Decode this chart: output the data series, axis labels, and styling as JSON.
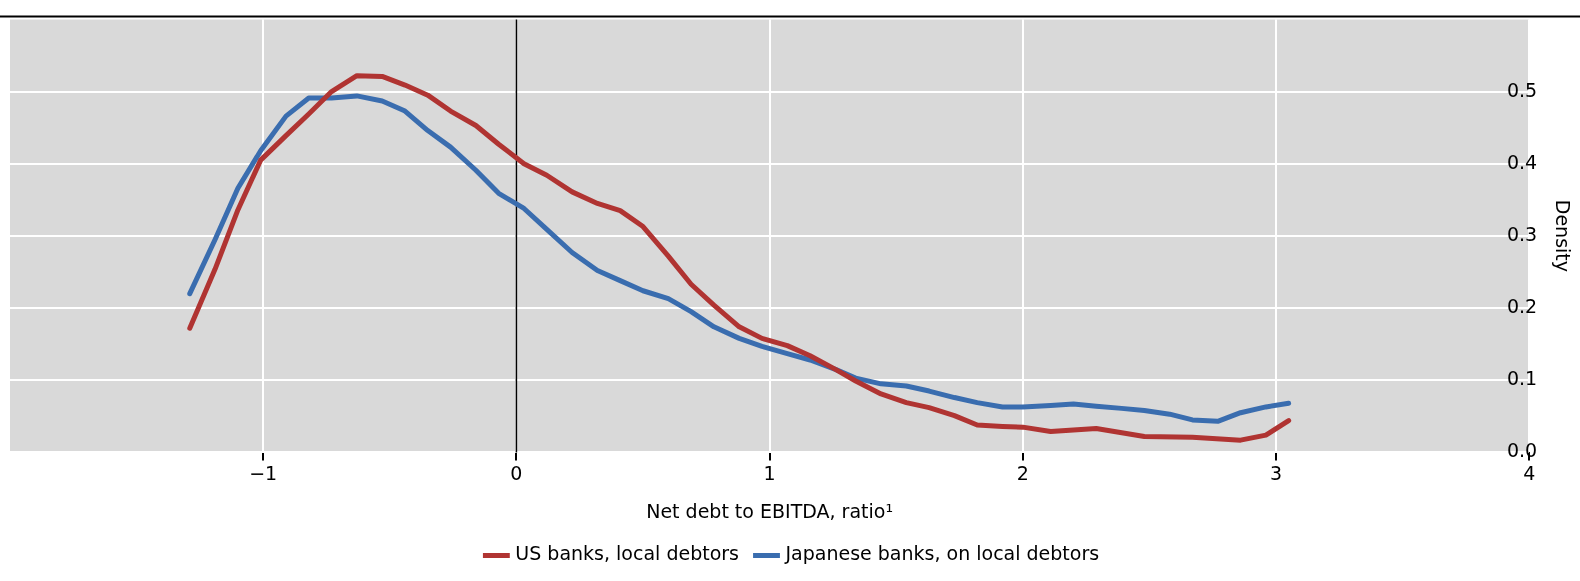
{
  "chart_data": {
    "type": "line",
    "xlabel": "Net debt to EBITDA, ratio¹",
    "ylabel": "Density",
    "xlim": [
      -2,
      4
    ],
    "xticks": [
      {
        "value": -1,
        "label": "−1"
      },
      0,
      1,
      2,
      3,
      4
    ],
    "ylim": [
      0,
      0.6
    ],
    "yticks": [
      {
        "value": 0,
        "label": "0.0"
      },
      0.1,
      0.2,
      0.3,
      0.4,
      0.5
    ],
    "grid": true,
    "legend": "bottom",
    "marker": "none",
    "line_style": "solid",
    "ref_lines": [
      {
        "axis": "x",
        "value": 0,
        "color": "#000000"
      }
    ],
    "series": [
      {
        "name": "US banks, local debtors",
        "color": "#b03432",
        "x": [
          -1.29,
          -1.19,
          -1.1,
          -1.01,
          -0.91,
          -0.82,
          -0.73,
          -0.63,
          -0.53,
          -0.44,
          -0.35,
          -0.26,
          -0.16,
          -0.07,
          0.03,
          0.12,
          0.22,
          0.32,
          0.41,
          0.5,
          0.6,
          0.69,
          0.78,
          0.88,
          0.97,
          1.07,
          1.16,
          1.26,
          1.34,
          1.44,
          1.54,
          1.63,
          1.73,
          1.82,
          1.92,
          2.0,
          2.11,
          2.29,
          2.48,
          2.67,
          2.86,
          2.96,
          3.05
        ],
        "values": [
          0.172,
          0.254,
          0.336,
          0.405,
          0.439,
          0.469,
          0.5,
          0.522,
          0.521,
          0.509,
          0.495,
          0.473,
          0.453,
          0.427,
          0.4,
          0.384,
          0.361,
          0.345,
          0.335,
          0.313,
          0.272,
          0.233,
          0.204,
          0.174,
          0.158,
          0.148,
          0.134,
          0.115,
          0.099,
          0.081,
          0.069,
          0.062,
          0.051,
          0.038,
          0.036,
          0.035,
          0.029,
          0.033,
          0.022,
          0.021,
          0.017,
          0.024,
          0.044
        ]
      },
      {
        "name": "Japanese banks, on local debtors",
        "color": "#3a6daf",
        "x": [
          -1.29,
          -1.19,
          -1.1,
          -1.01,
          -0.91,
          -0.82,
          -0.73,
          -0.63,
          -0.53,
          -0.44,
          -0.35,
          -0.26,
          -0.16,
          -0.07,
          0.03,
          0.12,
          0.22,
          0.32,
          0.41,
          0.5,
          0.6,
          0.69,
          0.78,
          0.88,
          0.97,
          1.07,
          1.16,
          1.26,
          1.34,
          1.44,
          1.54,
          1.63,
          1.73,
          1.82,
          1.92,
          2.0,
          2.11,
          2.2,
          2.29,
          2.39,
          2.48,
          2.58,
          2.67,
          2.77,
          2.86,
          2.96,
          3.05
        ],
        "values": [
          0.22,
          0.295,
          0.366,
          0.418,
          0.466,
          0.491,
          0.491,
          0.494,
          0.487,
          0.473,
          0.446,
          0.423,
          0.391,
          0.359,
          0.338,
          0.309,
          0.277,
          0.252,
          0.238,
          0.224,
          0.213,
          0.195,
          0.174,
          0.158,
          0.147,
          0.137,
          0.128,
          0.115,
          0.103,
          0.095,
          0.092,
          0.085,
          0.076,
          0.069,
          0.063,
          0.063,
          0.065,
          0.067,
          0.064,
          0.061,
          0.058,
          0.053,
          0.045,
          0.043,
          0.055,
          0.063,
          0.068
        ]
      }
    ]
  }
}
